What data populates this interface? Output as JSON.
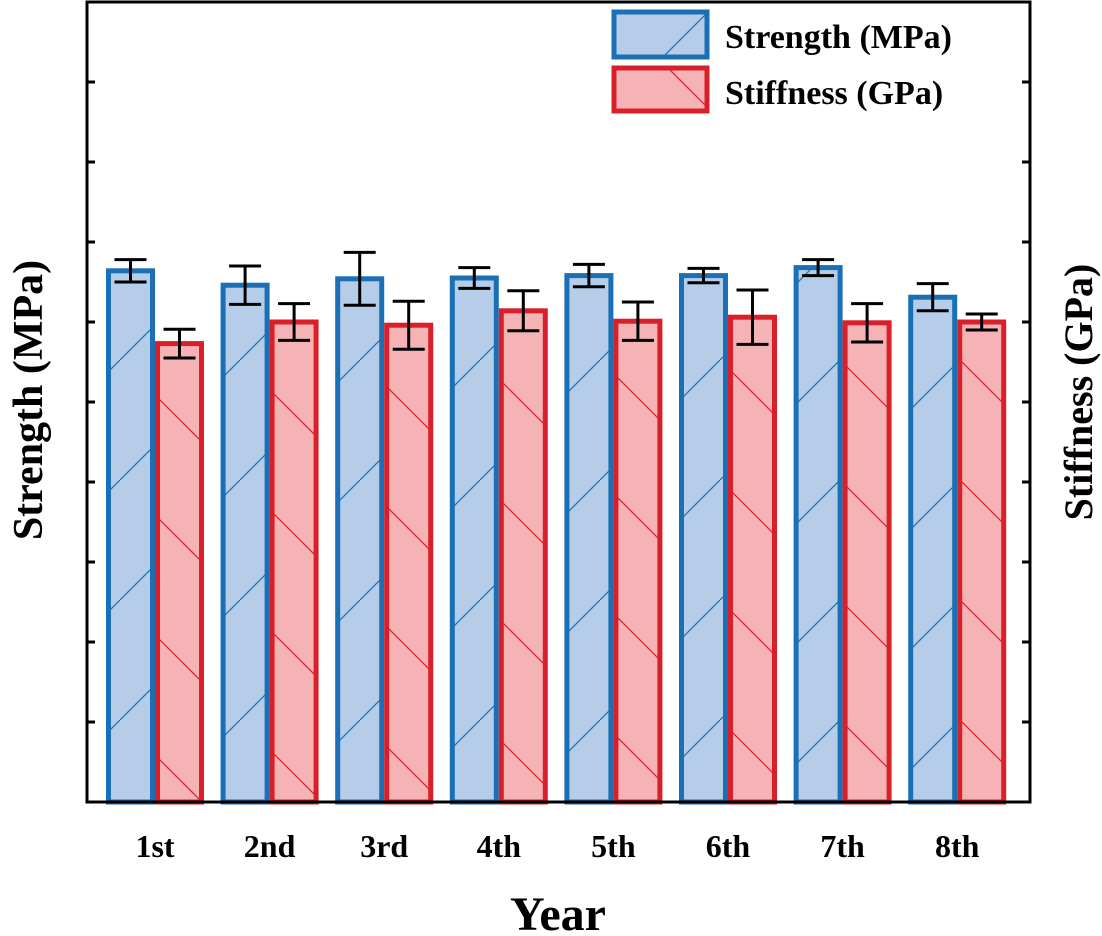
{
  "chart_data": {
    "type": "bar",
    "title": "",
    "xlabel": "Year",
    "ylabel": "Strength (MPa)",
    "ylabel_right": "Stiffness (GPa)",
    "y_tick_labels_visible": false,
    "ylim": [
      0,
      10
    ],
    "y_major_ticks": [
      1,
      2,
      3,
      4,
      5,
      6,
      7,
      8,
      9
    ],
    "grid": false,
    "legend_position": "top-right",
    "categories": [
      "1st",
      "2nd",
      "3rd",
      "4th",
      "5th",
      "6th",
      "7th",
      "8th"
    ],
    "series": [
      {
        "name": "Strength (MPa)",
        "axis": "left",
        "fill": "#b5cde8",
        "stroke": "#1a6fb5",
        "hatch": "forward-diagonal",
        "values": [
          6.64,
          6.46,
          6.54,
          6.55,
          6.58,
          6.58,
          6.68,
          6.31
        ],
        "errors": [
          0.14,
          0.24,
          0.33,
          0.13,
          0.14,
          0.09,
          0.1,
          0.17
        ]
      },
      {
        "name": "Stiffness (GPa)",
        "axis": "right",
        "fill": "#f6b3b6",
        "stroke": "#d9202a",
        "hatch": "back-diagonal",
        "values": [
          5.73,
          6.0,
          5.96,
          6.14,
          6.01,
          6.06,
          5.99,
          6.0
        ],
        "errors": [
          0.18,
          0.23,
          0.3,
          0.25,
          0.24,
          0.34,
          0.24,
          0.1
        ]
      }
    ]
  }
}
